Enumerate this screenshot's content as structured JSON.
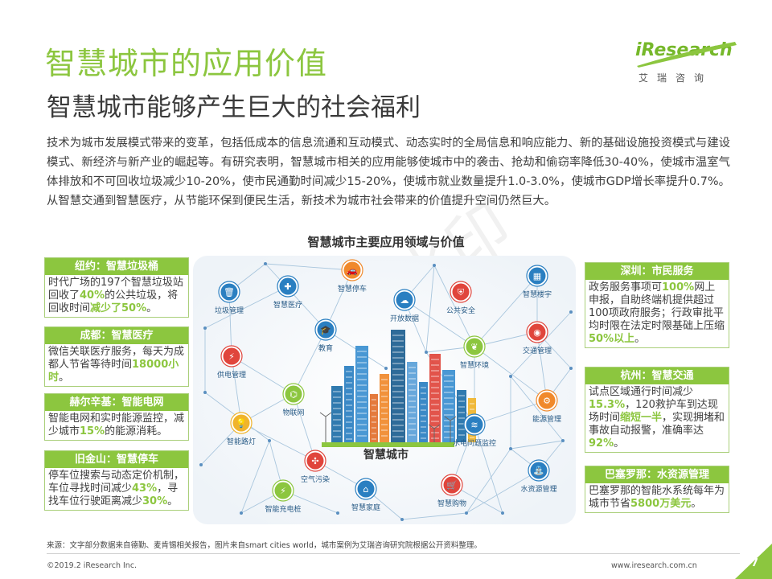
{
  "title": "智慧城市的应用价值",
  "subtitle": "智慧城市能够产生巨大的社会福利",
  "logo": {
    "brand": "iResearch",
    "cn": "艾瑞咨询"
  },
  "intro": "技术为城市发展模式带来的变革，包括低成本的信息流通和互动模式、动态实时的全局信息和响应能力、新的基础设施投资模式与建设模式、新经济与新产业的崛起等。有研究表明，智慧城市相关的应用能够使城市中的袭击、抢劫和偷窃率降低30-40%，使城市温室气体排放和不可回收垃圾减少10-20%，使市民通勤时间减少15-20%，使城市就业数量提升1.0-3.0%，使城市GDP增长率提升0.7%。从智慧交通到智慧医疗，从节能环保到便民生活，新技术为城市社会带来的价值提升空间仍然巨大。",
  "diagram": {
    "title": "智慧城市主要应用领域与价值",
    "center_label": "智慧城市",
    "nodes": [
      {
        "label": "垃圾管理",
        "icon": "trash-icon",
        "color": "#2a7fc1"
      },
      {
        "label": "智慧医疗",
        "icon": "medical-icon",
        "color": "#2a7fc1"
      },
      {
        "label": "智慧停车",
        "icon": "car-icon",
        "color": "#f0892b"
      },
      {
        "label": "开放数据",
        "icon": "data-icon",
        "color": "#2a7fc1"
      },
      {
        "label": "公共安全",
        "icon": "shield-icon",
        "color": "#e0453c"
      },
      {
        "label": "智慧楼宇",
        "icon": "building-icon",
        "color": "#2a7fc1"
      },
      {
        "label": "教育",
        "icon": "graduation-cap-icon",
        "color": "#2a7fc1"
      },
      {
        "label": "交通管理",
        "icon": "camera-icon",
        "color": "#e0453c"
      },
      {
        "label": "供电管理",
        "icon": "power-tower-icon",
        "color": "#e0453c"
      },
      {
        "label": "智慧环境",
        "icon": "leaf-icon",
        "color": "#8cc63f"
      },
      {
        "label": "物联网",
        "icon": "iot-icon",
        "color": "#8cc63f"
      },
      {
        "label": "能源管理",
        "icon": "energy-icon",
        "color": "#f0892b"
      },
      {
        "label": "智能路灯",
        "icon": "bulb-icon",
        "color": "#f0b42b"
      },
      {
        "label": "水电问题监控",
        "icon": "water-power-icon",
        "color": "#2a7fc1"
      },
      {
        "label": "空气污染",
        "icon": "fan-icon",
        "color": "#e0453c"
      },
      {
        "label": "智能充电桩",
        "icon": "charger-icon",
        "color": "#8cc63f"
      },
      {
        "label": "智慧家庭",
        "icon": "home-icon",
        "color": "#2a7fc1"
      },
      {
        "label": "智慧购物",
        "icon": "cart-icon",
        "color": "#e0453c"
      },
      {
        "label": "水资源管理",
        "icon": "faucet-icon",
        "color": "#2a7fc1"
      }
    ]
  },
  "cases_left": [
    {
      "header": "纽约：智慧垃圾桶",
      "parts": [
        "时代广场的197个智慧垃圾站回收了",
        "40%",
        "的公共垃圾，将回收时间",
        "减少了50%",
        "。"
      ]
    },
    {
      "header": "成都：智慧医疗",
      "parts": [
        "微信关联医疗服务，每天为成都人节省等待时间",
        "18000小时",
        "。"
      ]
    },
    {
      "header": "赫尔辛基：智能电网",
      "parts": [
        "智能电网和实时能源监控，减少城市",
        "15%",
        "的能源消耗。"
      ]
    },
    {
      "header": "旧金山：智慧停车",
      "parts": [
        "停车位搜索与动态定价机制，车位寻找时间减少",
        "43%",
        "，寻找车位行驶距离减少",
        "30%",
        "。"
      ]
    }
  ],
  "cases_right": [
    {
      "header": "深圳：市民服务",
      "parts": [
        "政务服务事项可",
        "100%",
        "网上申报，自助终端机提供超过100项政府服务；行政审批平均时限在法定时限基础上压缩",
        "50%以上",
        "。"
      ]
    },
    {
      "header": "杭州：智慧交通",
      "parts": [
        "试点区域通行时间减少",
        "15.3%",
        "，120救护车到达现场时间",
        "缩短一半",
        "，实现拥堵和事故自动报警，准确率达",
        "92%",
        "。"
      ]
    },
    {
      "header": "巴塞罗那：水资源管理",
      "parts": [
        "巴塞罗那的智能水系统每年为城市节省",
        "5800万美元",
        "。"
      ]
    }
  ],
  "footer": {
    "source": "来源：文字部分数据来自德勤、麦肯锡相关报告，图片来自smart cities world，城市案例为艾瑞咨询研究院根据公开资料整理。",
    "copyright": "©2019.2 iResearch Inc.",
    "website": "www.iresearch.com.cn",
    "page": "7"
  },
  "colors": {
    "accent": "#8cc63f",
    "blue": "#2a7fc1",
    "orange": "#f0892b",
    "red": "#e0453c"
  }
}
